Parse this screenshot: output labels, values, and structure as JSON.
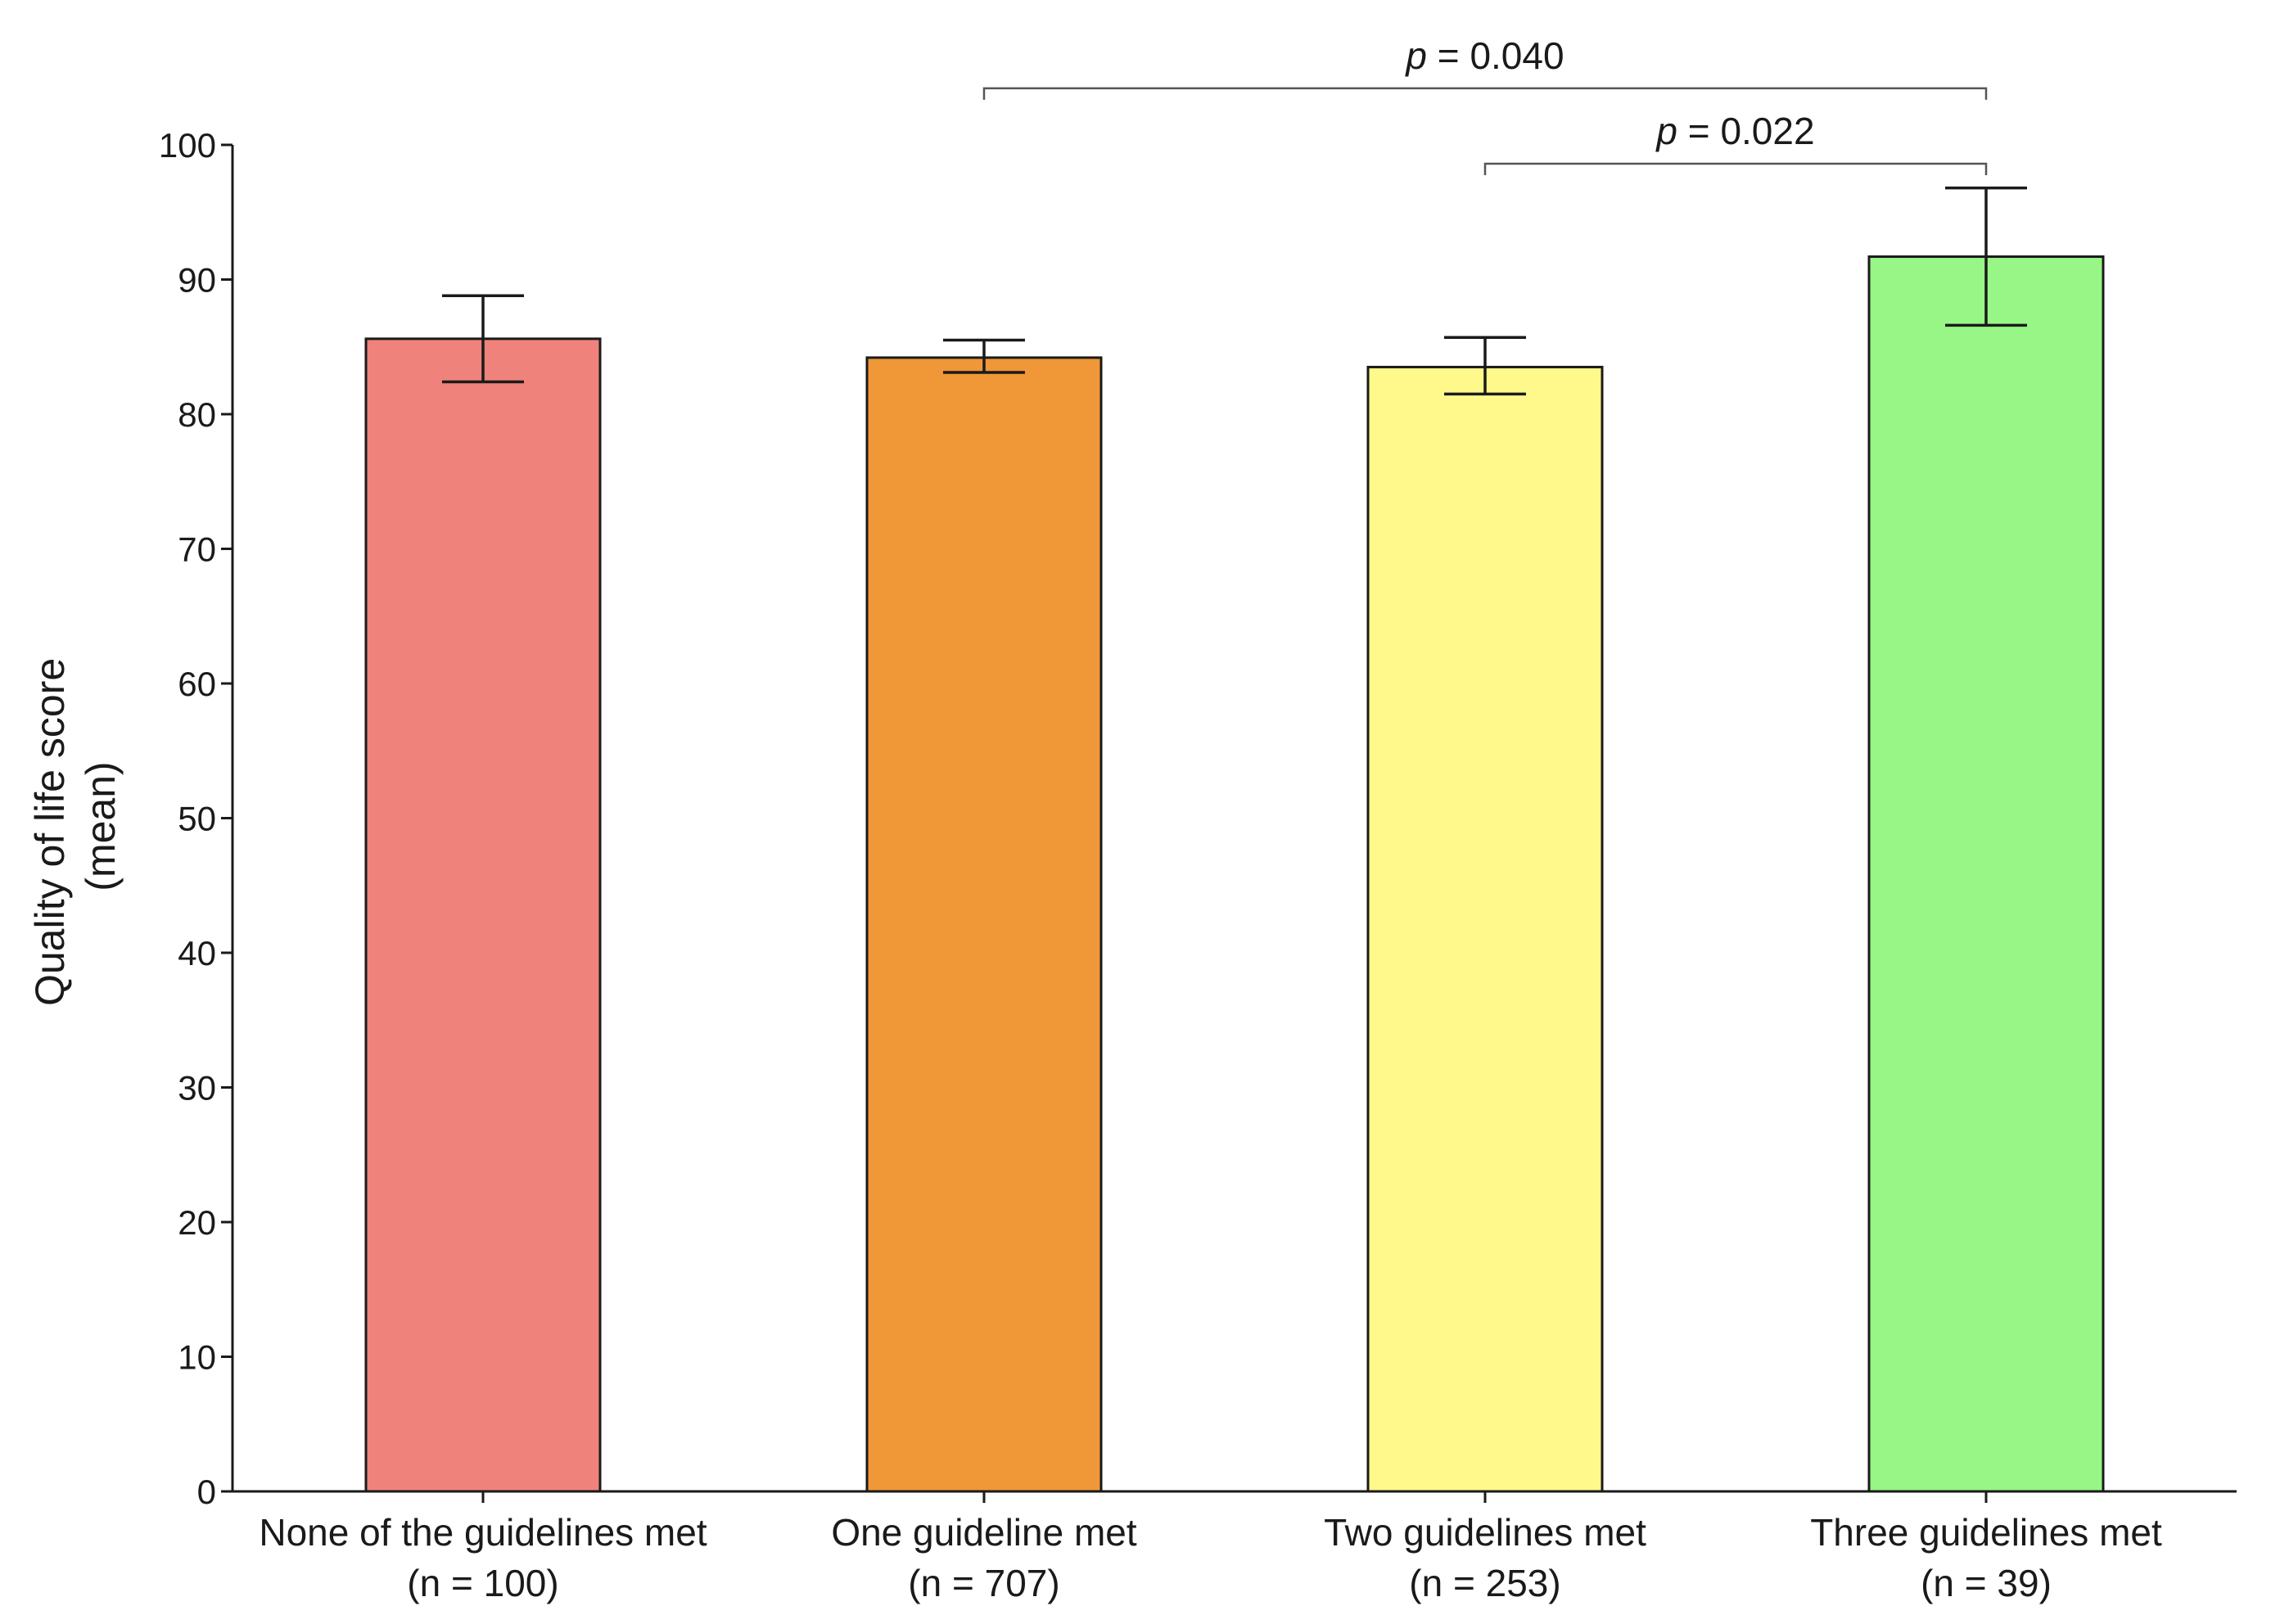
{
  "chart_data": {
    "type": "bar",
    "title": "",
    "xlabel": "",
    "ylabel": [
      "Quality of life score",
      "(mean)"
    ],
    "ylim": [
      0,
      100
    ],
    "yticks": [
      0,
      10,
      20,
      30,
      40,
      50,
      60,
      70,
      80,
      90,
      100
    ],
    "categories": [
      {
        "label": "None of the guidelines met",
        "n_label": "(n = 100)",
        "value": 85.6,
        "err_low": 82.4,
        "err_high": 88.8,
        "color": "#EF837B"
      },
      {
        "label": "One guideline met",
        "n_label": "(n = 707)",
        "value": 84.2,
        "err_low": 83.1,
        "err_high": 85.5,
        "color": "#F09738"
      },
      {
        "label": "Two guidelines met",
        "n_label": "(n = 253)",
        "value": 83.5,
        "err_low": 81.5,
        "err_high": 85.7,
        "color": "#FEF98A"
      },
      {
        "label": "Three guidelines met",
        "n_label": "(n = 39)",
        "value": 91.7,
        "err_low": 86.6,
        "err_high": 96.8,
        "color": "#97F685"
      }
    ],
    "significance": [
      {
        "from": 1,
        "to": 3,
        "p_symbol": "p",
        "p_text": " = 0.040",
        "level": 104.2
      },
      {
        "from": 2,
        "to": 3,
        "p_symbol": "p",
        "p_text": " = 0.022",
        "level": 98.6
      }
    ]
  }
}
